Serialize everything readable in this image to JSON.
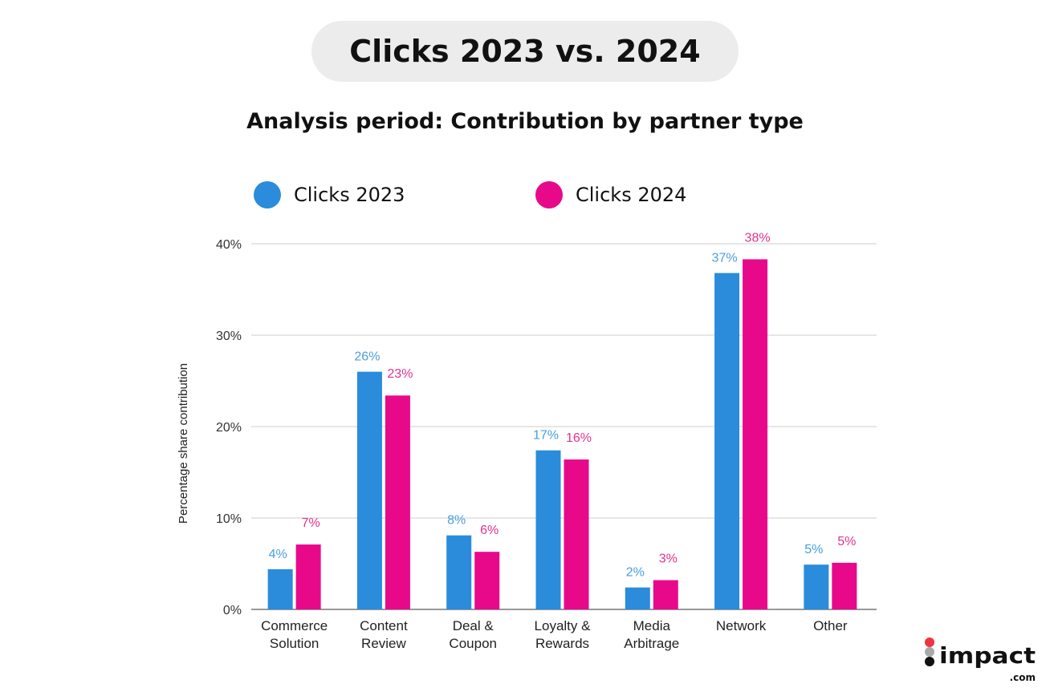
{
  "header": {
    "title": "Clicks 2023 vs. 2024"
  },
  "chart_data": {
    "type": "bar",
    "title": "Analysis period: Contribution by partner type",
    "xlabel": "",
    "ylabel": "Percentage share contribution",
    "ylim": [
      0,
      40
    ],
    "yticks": [
      "0%",
      "10%",
      "20%",
      "30%",
      "40%"
    ],
    "grid": true,
    "legend_position": "top",
    "categories": [
      [
        "Commerce",
        "Solution"
      ],
      [
        "Content",
        "Review"
      ],
      [
        "Deal &",
        "Coupon"
      ],
      [
        "Loyalty &",
        "Rewards"
      ],
      [
        "Media",
        "Arbitrage"
      ],
      [
        "Network"
      ],
      [
        "Other"
      ]
    ],
    "series": [
      {
        "name": "Clicks 2023",
        "color": "#2a8cdb",
        "label_color": "#4a9ee0",
        "values": [
          4.4,
          26.0,
          8.1,
          17.4,
          2.4,
          36.8,
          4.9
        ],
        "labels": [
          "4%",
          "26%",
          "8%",
          "17%",
          "2%",
          "37%",
          "5%"
        ]
      },
      {
        "name": "Clicks 2024",
        "color": "#e8098b",
        "label_color": "#e0338f",
        "values": [
          7.1,
          23.4,
          6.3,
          16.4,
          3.2,
          38.3,
          5.1
        ],
        "labels": [
          "7%",
          "23%",
          "6%",
          "16%",
          "3%",
          "38%",
          "5%"
        ]
      }
    ]
  },
  "logo": {
    "text": "impact",
    "suffix": ".com"
  }
}
